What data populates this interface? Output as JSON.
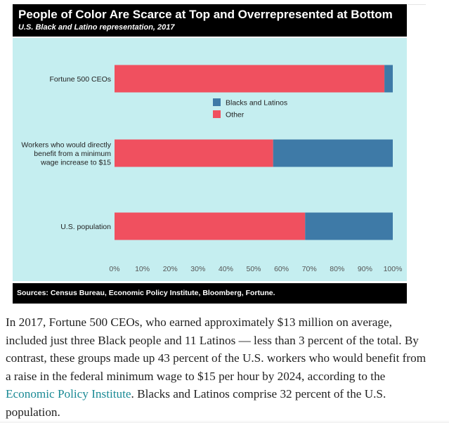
{
  "chart_data": {
    "type": "bar",
    "orientation": "horizontal",
    "stacked": true,
    "title": "People of Color Are Scarce at Top and Overrepresented at Bottom",
    "subtitle": "U.S. Black and Latino representation, 2017",
    "categories": [
      [
        "Fortune 500 CEOs"
      ],
      [
        "Workers who would directly",
        "benefit from a minimum",
        "wage increase to $15"
      ],
      [
        "U.S. population"
      ]
    ],
    "series": [
      {
        "name": "Other",
        "color": "#f0505f",
        "values": [
          97,
          57,
          68.5
        ]
      },
      {
        "name": "Blacks and Latinos",
        "color": "#3e7aa7",
        "values": [
          3,
          43,
          31.5
        ]
      }
    ],
    "xlim": [
      0,
      100
    ],
    "xticks": [
      "0%",
      "10%",
      "20%",
      "30%",
      "40%",
      "50%",
      "60%",
      "70%",
      "80%",
      "90%",
      "100%"
    ],
    "legend": [
      "Blacks and Latinos",
      "Other"
    ],
    "legend_position": "center-right",
    "grid": false,
    "source": "Sources: Census Bureau, Economic Policy Institute, Bloomberg, Fortune."
  },
  "article": {
    "l1": "In 2017, Fortune 500 CEOs, who earned approximately $13 million on average,",
    "l2": "included just three Black people and 11 Latinos — less than 3 percent of the total. By",
    "l3": "contrast, these groups made up 43 percent of the U.S. workers who would benefit from",
    "l4": "a raise in the federal minimum wage to $15 per hour by 2024, according to the",
    "link": "Economic Policy Institute",
    "l5_rest": ". Blacks and Latinos comprise 32 percent of the U.S.",
    "l6": "population."
  },
  "colors": {
    "plot_background": "#c5eef0",
    "link": "#1a8a95"
  }
}
